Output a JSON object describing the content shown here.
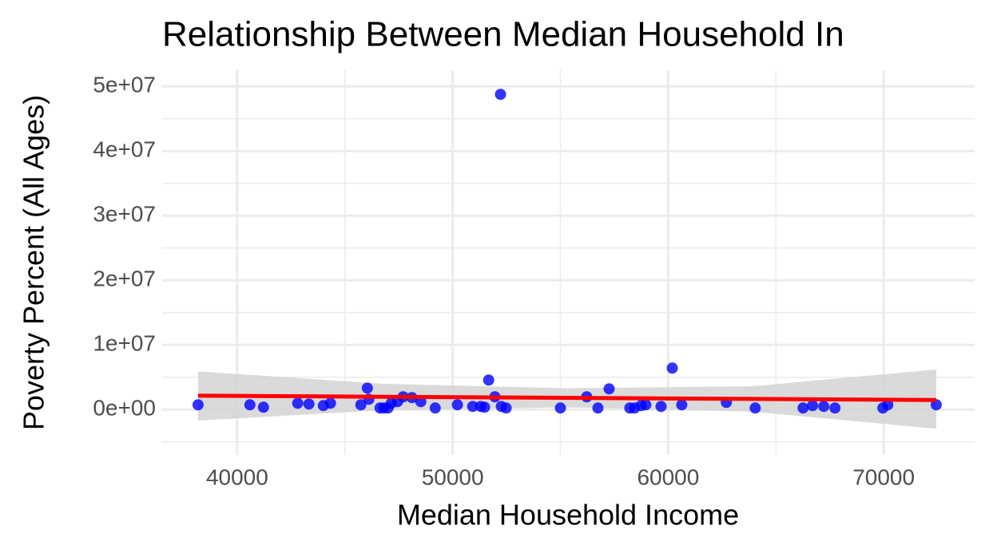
{
  "chart_data": {
    "type": "scatter",
    "title": "Relationship Between Median Household In",
    "x_label": "Median Household Income",
    "y_label": "Poverty Percent (All Ages)",
    "x": [
      38185,
      40590,
      41220,
      42810,
      43330,
      44000,
      44330,
      45740,
      46040,
      46110,
      46630,
      46810,
      47000,
      47150,
      47440,
      47700,
      48110,
      48520,
      49190,
      50220,
      50930,
      51300,
      51480,
      51670,
      51960,
      52220,
      52260,
      52480,
      55000,
      56220,
      56740,
      57260,
      58220,
      58440,
      58740,
      58960,
      59670,
      60190,
      60630,
      62700,
      64040,
      66260,
      66700,
      67220,
      67740,
      69960,
      70190,
      72440
    ],
    "series": [
      {
        "color": "#0000ff",
        "values": [
          740000,
          740000,
          370000,
          990000,
          860000,
          620000,
          990000,
          740000,
          3330000,
          1600000,
          250000,
          250000,
          250000,
          990000,
          1230000,
          1980000,
          1850000,
          1230000,
          250000,
          740000,
          490000,
          490000,
          370000,
          4570000,
          1980000,
          48770000,
          490000,
          250000,
          250000,
          1980000,
          250000,
          3210000,
          250000,
          250000,
          620000,
          740000,
          490000,
          6420000,
          740000,
          1110000,
          250000,
          250000,
          620000,
          490000,
          250000,
          250000,
          740000,
          740000
        ]
      }
    ],
    "fit": {
      "color": "#ff0000",
      "band_color": "#d3d3d3",
      "x": [
        38185,
        46750,
        55300,
        63870,
        72440
      ],
      "values": [
        2150000,
        1980000,
        1820000,
        1650000,
        1480000
      ],
      "lower": [
        -1700000,
        -100000,
        350000,
        -300000,
        -2960000
      ],
      "upper": [
        5900000,
        4000000,
        3300000,
        3600000,
        6200000
      ]
    },
    "xlim": [
      36520,
      74220
    ],
    "ylim": [
      -7000000,
      52500000
    ],
    "xticks": [
      40000,
      50000,
      60000,
      70000
    ],
    "yticks": [
      {
        "value": 0,
        "label": "0e+00"
      },
      {
        "value": 10000000,
        "label": "1e+07"
      },
      {
        "value": 20000000,
        "label": "2e+07"
      },
      {
        "value": 30000000,
        "label": "3e+07"
      },
      {
        "value": 40000000,
        "label": "4e+07"
      },
      {
        "value": 50000000,
        "label": "5e+07"
      }
    ],
    "grid": true
  }
}
